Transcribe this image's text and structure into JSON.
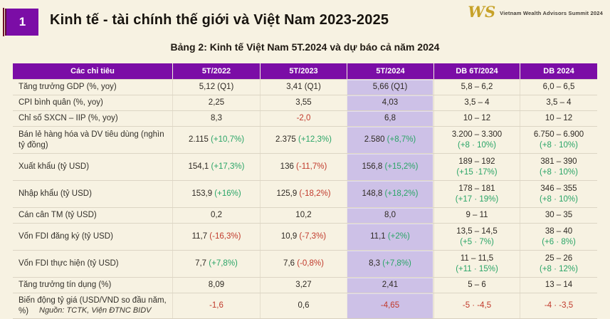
{
  "header": {
    "slide_number": "1",
    "title": "Kinh tế - tài chính thế giới và Việt Nam 2023-2025",
    "logo_monogram": "WS",
    "logo_text": "Vietnam Wealth Advisors Summit 2024",
    "subtitle": "Bảng 2: Kinh tế Việt Nam 5T.2024 và dự báo cả năm 2024"
  },
  "colors": {
    "background": "#f7f2e2",
    "header_purple": "#7b0da6",
    "highlight_column": "#cdc1e7",
    "positive_green": "#2aa567",
    "negative_red": "#c13a2c",
    "logo_gold": "#c7a229"
  },
  "table": {
    "columns": [
      "Các chỉ tiêu",
      "5T/2022",
      "5T/2023",
      "5T/2024",
      "DB 6T/2024",
      "DB 2024"
    ],
    "highlight_column": "5T/2024",
    "rows": [
      {
        "label": "Tăng trưởng GDP (%, yoy)",
        "cells": [
          {
            "v": "5,12 (Q1)"
          },
          {
            "v": "3,41 (Q1)"
          },
          {
            "v": "5,66 (Q1)"
          },
          {
            "v": "5,8 – 6,2"
          },
          {
            "v": "6,0 – 6,5"
          }
        ]
      },
      {
        "label": "CPI bình quân (%, yoy)",
        "cells": [
          {
            "v": "2,25"
          },
          {
            "v": "3,55"
          },
          {
            "v": "4,03"
          },
          {
            "v": "3,5 – 4"
          },
          {
            "v": "3,5 – 4"
          }
        ]
      },
      {
        "label": "Chỉ số SXCN – IIP (%, yoy)",
        "cells": [
          {
            "v": "8,3"
          },
          {
            "v": "-2,0",
            "vs": "neg"
          },
          {
            "v": "6,8"
          },
          {
            "v": "10 – 12"
          },
          {
            "v": "10 – 12"
          }
        ]
      },
      {
        "label": "Bán lẻ hàng hóa và DV tiêu dùng (nghìn tỷ đồng)",
        "cells": [
          {
            "v": "2.115",
            "d": "(+10,7%)",
            "ds": "pos"
          },
          {
            "v": "2.375",
            "d": "(+12,3%)",
            "ds": "pos"
          },
          {
            "v": "2.580",
            "d": "(+8,7%)",
            "ds": "pos"
          },
          {
            "v": "3.200 – 3.300",
            "d": "(+8 · 10%)",
            "ds": "pos",
            "stack": true
          },
          {
            "v": "6.750 – 6.900",
            "d": "(+8 · 10%)",
            "ds": "pos",
            "stack": true
          }
        ]
      },
      {
        "label": "Xuất khẩu (tỷ USD)",
        "cells": [
          {
            "v": "154,1",
            "d": "(+17,3%)",
            "ds": "pos"
          },
          {
            "v": "136",
            "d": "(-11,7%)",
            "ds": "neg"
          },
          {
            "v": "156,8",
            "d": "(+15,2%)",
            "ds": "pos"
          },
          {
            "v": "189 – 192",
            "d": "(+15 ·17%)",
            "ds": "pos",
            "stack": true
          },
          {
            "v": "381 – 390",
            "d": "(+8 · 10%)",
            "ds": "pos",
            "stack": true
          }
        ]
      },
      {
        "label": "Nhập khẩu (tỷ USD)",
        "cells": [
          {
            "v": "153,9",
            "d": "(+16%)",
            "ds": "pos"
          },
          {
            "v": "125,9",
            "d": "(-18,2%)",
            "ds": "neg"
          },
          {
            "v": "148,8",
            "d": "(+18,2%)",
            "ds": "pos"
          },
          {
            "v": "178 – 181",
            "d": "(+17 · 19%)",
            "ds": "pos",
            "stack": true
          },
          {
            "v": "346 – 355",
            "d": "(+8 · 10%)",
            "ds": "pos",
            "stack": true
          }
        ]
      },
      {
        "label": "Cán cân TM (tỷ USD)",
        "cells": [
          {
            "v": "0,2"
          },
          {
            "v": "10,2"
          },
          {
            "v": "8,0"
          },
          {
            "v": "9 – 11"
          },
          {
            "v": "30 – 35"
          }
        ]
      },
      {
        "label": "Vốn FDI đăng ký (tỷ USD)",
        "cells": [
          {
            "v": "11,7",
            "d": "(-16,3%)",
            "ds": "neg"
          },
          {
            "v": "10,9",
            "d": "(-7,3%)",
            "ds": "neg"
          },
          {
            "v": "11,1",
            "d": "(+2%)",
            "ds": "pos"
          },
          {
            "v": "13,5 – 14,5",
            "d": "(+5 · 7%)",
            "ds": "pos",
            "stack": true
          },
          {
            "v": "38 – 40",
            "d": "(+6 · 8%)",
            "ds": "pos",
            "stack": true
          }
        ]
      },
      {
        "label": "Vốn FDI thực hiện (tỷ USD)",
        "cells": [
          {
            "v": "7,7",
            "d": "(+7,8%)",
            "ds": "pos"
          },
          {
            "v": "7,6",
            "d": "(-0,8%)",
            "ds": "neg"
          },
          {
            "v": "8,3",
            "d": "(+7,8%)",
            "ds": "pos"
          },
          {
            "v": "11 – 11,5",
            "d": "(+11 · 15%)",
            "ds": "pos",
            "stack": true
          },
          {
            "v": "25 – 26",
            "d": "(+8 · 12%)",
            "ds": "pos",
            "stack": true
          }
        ]
      },
      {
        "label": "Tăng trưởng tín dụng (%)",
        "cells": [
          {
            "v": "8,09"
          },
          {
            "v": "3,27"
          },
          {
            "v": "2,41"
          },
          {
            "v": "5 – 6"
          },
          {
            "v": "13 – 14"
          }
        ]
      },
      {
        "label": "Biến động tỷ giá (USD/VND so đầu năm, %)",
        "cells": [
          {
            "v": "-1,6",
            "vs": "neg"
          },
          {
            "v": "0,6"
          },
          {
            "v": "-4,65",
            "vs": "neg"
          },
          {
            "v": "-5 · -4,5",
            "vs": "neg"
          },
          {
            "v": "-4 · -3,5",
            "vs": "neg"
          }
        ]
      }
    ]
  },
  "footer": {
    "source": "Nguồn: TCTK, Viện ĐTNC BIDV"
  }
}
